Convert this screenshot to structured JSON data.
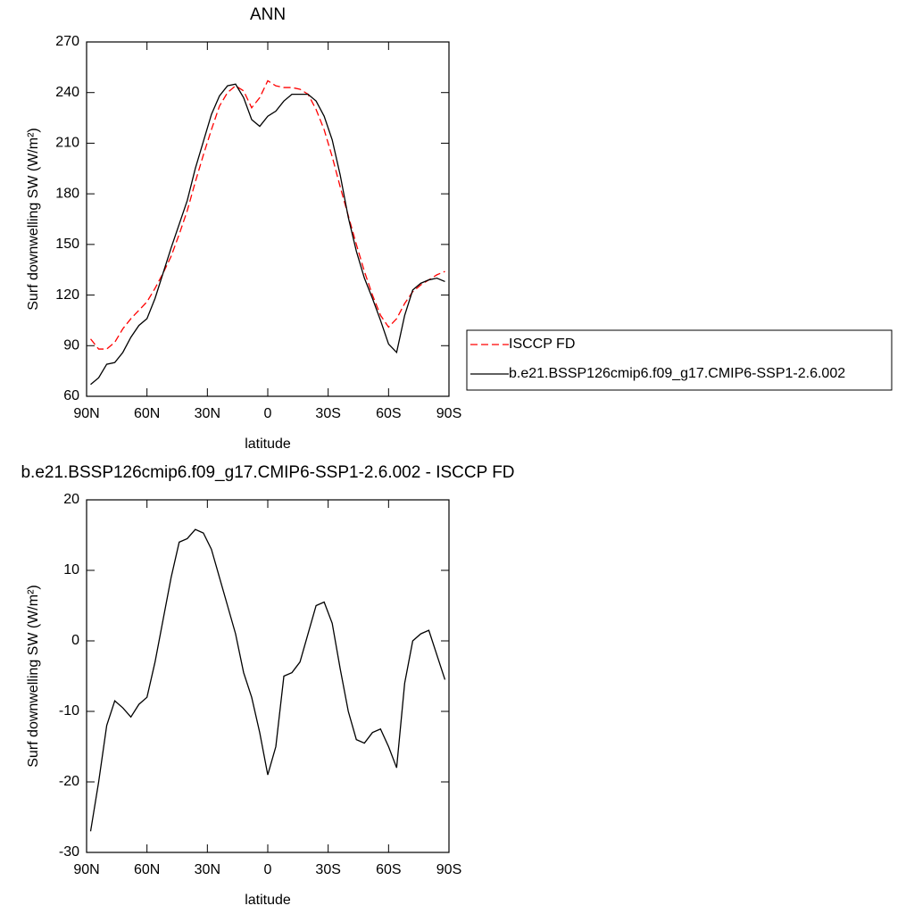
{
  "chart_data": [
    {
      "type": "line",
      "title": "ANN",
      "xlabel": "latitude",
      "ylabel": "Surf downwelling SW (W/m²)",
      "x": [
        88,
        84,
        80,
        76,
        72,
        68,
        64,
        60,
        56,
        52,
        48,
        44,
        40,
        36,
        32,
        28,
        24,
        20,
        16,
        12,
        8,
        4,
        0,
        -4,
        -8,
        -12,
        -16,
        -20,
        -24,
        -28,
        -32,
        -36,
        -40,
        -44,
        -48,
        -52,
        -56,
        -60,
        -64,
        -68,
        -72,
        -76,
        -80,
        -84,
        -88
      ],
      "series": [
        {
          "name": "ISCCP FD",
          "color": "#ff0000",
          "style": "dashed",
          "values": [
            94,
            88,
            88,
            92,
            100,
            106,
            111,
            116,
            124,
            133,
            143,
            156,
            170,
            187,
            203,
            218,
            232,
            240,
            244,
            241,
            231,
            237,
            247,
            244,
            243,
            243,
            242,
            239,
            230,
            218,
            202,
            184,
            167,
            150,
            134,
            120,
            108,
            101,
            106,
            115,
            122,
            126,
            129,
            132,
            134
          ]
        },
        {
          "name": "b.e21.BSSP126cmip6.f09_g17.CMIP6-SSP1-2.6.002",
          "color": "#000000",
          "style": "solid",
          "values": [
            67,
            71,
            79,
            80,
            86,
            95,
            102,
            106,
            118,
            133,
            148,
            162,
            176,
            195,
            211,
            227,
            238,
            244,
            245,
            237,
            224,
            220,
            226,
            229,
            235,
            239,
            239,
            239,
            235,
            226,
            212,
            191,
            166,
            146,
            130,
            118,
            105,
            91,
            86,
            108,
            123,
            127,
            129,
            130,
            128
          ]
        }
      ],
      "xlim": [
        90,
        -90
      ],
      "xticks": [
        {
          "value": 90,
          "label": "90N"
        },
        {
          "value": 60,
          "label": "60N"
        },
        {
          "value": 30,
          "label": "30N"
        },
        0,
        {
          "value": -30,
          "label": "30S"
        },
        {
          "value": -60,
          "label": "60S"
        },
        {
          "value": -90,
          "label": "90S"
        }
      ],
      "ylim": [
        60,
        270
      ],
      "yticks": [
        60,
        90,
        120,
        150,
        180,
        210,
        240,
        270
      ],
      "legend": "right"
    },
    {
      "type": "line",
      "title": "b.e21.BSSP126cmip6.f09_g17.CMIP6-SSP1-2.6.002 - ISCCP FD",
      "xlabel": "latitude",
      "ylabel": "Surf downwelling SW (W/m²)",
      "x": [
        88,
        84,
        80,
        76,
        72,
        68,
        64,
        60,
        56,
        52,
        48,
        44,
        40,
        36,
        32,
        28,
        24,
        20,
        16,
        12,
        8,
        4,
        0,
        -4,
        -8,
        -12,
        -16,
        -20,
        -24,
        -28,
        -32,
        -36,
        -40,
        -44,
        -48,
        -52,
        -56,
        -60,
        -64,
        -68,
        -72,
        -76,
        -80,
        -84,
        -88
      ],
      "series": [
        {
          "color": "#000000",
          "style": "solid",
          "values": [
            -27,
            -20,
            -12,
            -8.5,
            -9.5,
            -10.8,
            -9,
            -8,
            -3,
            3,
            9,
            14,
            14.5,
            15.8,
            15.3,
            13,
            9,
            5,
            1,
            -4.5,
            -8,
            -13,
            -19,
            -15,
            -5,
            -4.5,
            -3,
            1,
            5,
            5.5,
            2.5,
            -4,
            -10,
            -14,
            -14.5,
            -13,
            -12.5,
            -15,
            -18,
            -6,
            0,
            1,
            1.5,
            -2,
            -5.5
          ]
        }
      ],
      "xlim": [
        90,
        -90
      ],
      "xticks": [
        {
          "value": 90,
          "label": "90N"
        },
        {
          "value": 60,
          "label": "60N"
        },
        {
          "value": 30,
          "label": "30N"
        },
        0,
        {
          "value": -30,
          "label": "30S"
        },
        {
          "value": -60,
          "label": "60S"
        },
        {
          "value": -90,
          "label": "90S"
        }
      ],
      "ylim": [
        -30,
        20
      ],
      "yticks": [
        -30,
        -20,
        -10,
        0,
        10,
        20
      ]
    }
  ]
}
